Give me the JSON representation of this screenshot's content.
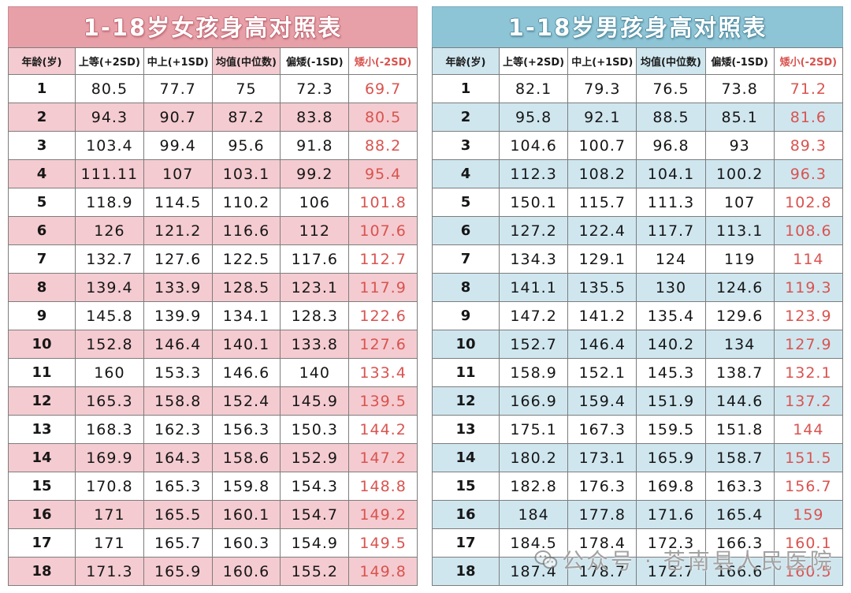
{
  "tables": [
    {
      "title": "1-18岁女孩身高对照表",
      "headers": [
        "年龄(岁)",
        "上等(+2SD)",
        "中上(+1SD)",
        "均值(中位数)",
        "偏矮(-1SD)",
        "矮小(-2SD)"
      ],
      "rows": [
        [
          "1",
          "80.5",
          "77.7",
          "75",
          "72.3",
          "69.7"
        ],
        [
          "2",
          "94.3",
          "90.7",
          "87.2",
          "83.8",
          "80.5"
        ],
        [
          "3",
          "103.4",
          "99.4",
          "95.6",
          "91.8",
          "88.2"
        ],
        [
          "4",
          "111.11",
          "107",
          "103.1",
          "99.2",
          "95.4"
        ],
        [
          "5",
          "118.9",
          "114.5",
          "110.2",
          "106",
          "101.8"
        ],
        [
          "6",
          "126",
          "121.2",
          "116.6",
          "112",
          "107.6"
        ],
        [
          "7",
          "132.7",
          "127.6",
          "122.5",
          "117.6",
          "112.7"
        ],
        [
          "8",
          "139.4",
          "133.9",
          "128.5",
          "123.1",
          "117.9"
        ],
        [
          "9",
          "145.8",
          "139.9",
          "134.1",
          "128.3",
          "122.6"
        ],
        [
          "10",
          "152.8",
          "146.4",
          "140.1",
          "133.8",
          "127.6"
        ],
        [
          "11",
          "160",
          "153.3",
          "146.6",
          "140",
          "133.4"
        ],
        [
          "12",
          "165.3",
          "158.8",
          "152.4",
          "145.9",
          "139.5"
        ],
        [
          "13",
          "168.3",
          "162.3",
          "156.3",
          "150.3",
          "144.2"
        ],
        [
          "14",
          "169.9",
          "164.3",
          "158.6",
          "152.9",
          "147.2"
        ],
        [
          "15",
          "170.8",
          "165.3",
          "159.8",
          "154.3",
          "148.8"
        ],
        [
          "16",
          "171",
          "165.5",
          "160.1",
          "154.7",
          "149.2"
        ],
        [
          "17",
          "171",
          "165.7",
          "160.3",
          "154.9",
          "149.5"
        ],
        [
          "18",
          "171.3",
          "165.9",
          "160.6",
          "155.2",
          "149.8"
        ]
      ]
    },
    {
      "title": "1-18岁男孩身高对照表",
      "headers": [
        "年龄(岁)",
        "上等(+2SD)",
        "中上(+1SD)",
        "均值(中位数)",
        "偏矮(-1SD)",
        "矮小(-2SD)"
      ],
      "rows": [
        [
          "1",
          "82.1",
          "79.3",
          "76.5",
          "73.8",
          "71.2"
        ],
        [
          "2",
          "95.8",
          "92.1",
          "88.5",
          "85.1",
          "81.6"
        ],
        [
          "3",
          "104.6",
          "100.7",
          "96.8",
          "93",
          "89.3"
        ],
        [
          "4",
          "112.3",
          "108.2",
          "104.1",
          "100.2",
          "96.3"
        ],
        [
          "5",
          "150.1",
          "115.7",
          "111.3",
          "107",
          "102.8"
        ],
        [
          "6",
          "127.2",
          "122.4",
          "117.7",
          "113.1",
          "108.6"
        ],
        [
          "7",
          "134.3",
          "129.1",
          "124",
          "119",
          "114"
        ],
        [
          "8",
          "141.1",
          "135.5",
          "130",
          "124.6",
          "119.3"
        ],
        [
          "9",
          "147.2",
          "141.2",
          "135.4",
          "129.6",
          "123.9"
        ],
        [
          "10",
          "152.7",
          "146.4",
          "140.2",
          "134",
          "127.9"
        ],
        [
          "11",
          "158.9",
          "152.1",
          "145.3",
          "138.7",
          "132.1"
        ],
        [
          "12",
          "166.9",
          "159.4",
          "151.9",
          "144.6",
          "137.2"
        ],
        [
          "13",
          "175.1",
          "167.3",
          "159.5",
          "151.8",
          "144"
        ],
        [
          "14",
          "180.2",
          "173.1",
          "165.9",
          "158.7",
          "151.5"
        ],
        [
          "15",
          "182.8",
          "176.3",
          "169.8",
          "163.3",
          "156.7"
        ],
        [
          "16",
          "184",
          "177.8",
          "171.6",
          "165.4",
          "159"
        ],
        [
          "17",
          "184.5",
          "178.4",
          "172.3",
          "166.3",
          "160.1"
        ],
        [
          "18",
          "187.4",
          "178.7",
          "172.7",
          "166.6",
          "160.5"
        ]
      ]
    }
  ],
  "watermark": {
    "text": "公众号 · 苍南县人民医院",
    "icon": "wechat-icon"
  },
  "colors": {
    "girls_title": "#e8a0a8",
    "girls_row": "#f4cbd0",
    "boys_title": "#8ec5d6",
    "boys_row": "#cfe6ef",
    "short_text": "#d9534f"
  }
}
